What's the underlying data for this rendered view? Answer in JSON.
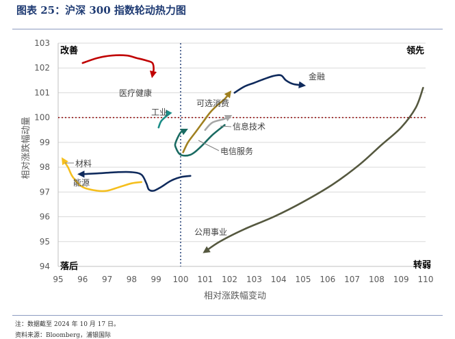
{
  "header": {
    "title": "图表 25：沪深 300 指数轮动热力图"
  },
  "notes": {
    "note": "注：数据截至 2024 年 10 月 17 日。",
    "source": "资料来源：Bloomberg，浦银国际"
  },
  "chart_data": {
    "type": "line",
    "xlabel": "相对涨跌幅变动",
    "ylabel": "相对涨跌幅动量",
    "xlim": [
      95,
      110
    ],
    "ylim": [
      94,
      103
    ],
    "xticks": [
      95,
      96,
      97,
      98,
      99,
      100,
      101,
      102,
      103,
      104,
      105,
      106,
      107,
      108,
      109,
      110
    ],
    "yticks": [
      94,
      95,
      96,
      97,
      98,
      99,
      100,
      101,
      102,
      103
    ],
    "xref": 100,
    "yref": 100,
    "quadrants": {
      "top_left": "改善",
      "top_right": "领先",
      "bottom_left": "落后",
      "bottom_right": "转弱"
    },
    "series": [
      {
        "name": "医疗健康",
        "color": "#c00000",
        "points": [
          [
            96.0,
            102.2
          ],
          [
            96.6,
            102.4
          ],
          [
            97.2,
            102.5
          ],
          [
            97.8,
            102.5
          ],
          [
            98.2,
            102.4
          ],
          [
            98.6,
            102.3
          ],
          [
            98.85,
            102.2
          ],
          [
            98.9,
            101.95
          ],
          [
            98.85,
            101.7
          ]
        ]
      },
      {
        "name": "工业",
        "color": "#1a8c86",
        "points": [
          [
            99.1,
            99.6
          ],
          [
            99.2,
            99.85
          ],
          [
            99.4,
            100.05
          ],
          [
            99.5,
            100.2
          ],
          [
            99.45,
            100.1
          ]
        ]
      },
      {
        "name": "金融",
        "color": "#0f2a5c",
        "points": [
          [
            102.2,
            101.0
          ],
          [
            102.6,
            101.25
          ],
          [
            103.0,
            101.4
          ],
          [
            103.4,
            101.55
          ],
          [
            103.8,
            101.68
          ],
          [
            104.1,
            101.7
          ],
          [
            104.3,
            101.5
          ],
          [
            104.6,
            101.35
          ],
          [
            105.0,
            101.3
          ]
        ]
      },
      {
        "name": "可选消费",
        "color": "#a08020",
        "points": [
          [
            100.1,
            98.6
          ],
          [
            100.3,
            99.0
          ],
          [
            100.6,
            99.4
          ],
          [
            100.9,
            99.8
          ],
          [
            101.2,
            100.2
          ],
          [
            101.5,
            100.5
          ],
          [
            101.8,
            100.75
          ],
          [
            102.0,
            101.0
          ]
        ]
      },
      {
        "name": "信息技术",
        "color": "#a6a6a6",
        "points": [
          [
            101.0,
            99.5
          ],
          [
            101.3,
            99.8
          ],
          [
            101.8,
            99.95
          ],
          [
            102.0,
            100.05
          ]
        ]
      },
      {
        "name": "电信服务",
        "color": "#1a6b62",
        "points": [
          [
            101.8,
            99.7
          ],
          [
            101.3,
            99.3
          ],
          [
            100.8,
            98.8
          ],
          [
            100.4,
            98.5
          ],
          [
            100.0,
            98.5
          ],
          [
            99.8,
            98.8
          ],
          [
            99.8,
            99.0
          ],
          [
            100.0,
            99.4
          ],
          [
            100.2,
            99.5
          ]
        ]
      },
      {
        "name": "材料",
        "color": "#f5bf1e",
        "points": [
          [
            98.4,
            97.4
          ],
          [
            98.0,
            97.35
          ],
          [
            97.5,
            97.2
          ],
          [
            97.0,
            97.05
          ],
          [
            96.6,
            97.05
          ],
          [
            96.0,
            97.2
          ],
          [
            95.6,
            97.6
          ],
          [
            95.4,
            98.0
          ],
          [
            95.2,
            98.3
          ]
        ]
      },
      {
        "name": "能源",
        "color": "#0f2a5c",
        "points": [
          [
            100.4,
            97.65
          ],
          [
            100.0,
            97.6
          ],
          [
            99.6,
            97.45
          ],
          [
            99.2,
            97.2
          ],
          [
            98.9,
            97.05
          ],
          [
            98.7,
            97.1
          ],
          [
            98.6,
            97.35
          ],
          [
            98.4,
            97.7
          ],
          [
            98.0,
            97.8
          ],
          [
            97.4,
            97.8
          ],
          [
            96.6,
            97.75
          ],
          [
            96.0,
            97.72
          ],
          [
            95.9,
            97.72
          ]
        ]
      },
      {
        "name": "公用事业",
        "color": "#55583f",
        "points": [
          [
            109.9,
            101.2
          ],
          [
            109.6,
            100.4
          ],
          [
            109.0,
            99.6
          ],
          [
            108.2,
            98.9
          ],
          [
            107.3,
            98.1
          ],
          [
            106.2,
            97.3
          ],
          [
            105.0,
            96.6
          ],
          [
            103.8,
            96.0
          ],
          [
            102.6,
            95.5
          ],
          [
            101.6,
            95.0
          ],
          [
            101.0,
            94.6
          ]
        ]
      }
    ],
    "annotations": [
      {
        "text": "医疗健康",
        "series": "医疗健康"
      },
      {
        "text": "工业",
        "series": "工业"
      },
      {
        "text": "金融",
        "series": "金融"
      },
      {
        "text": "可选消费",
        "series": "可选消费"
      },
      {
        "text": "信息技术",
        "series": "信息技术"
      },
      {
        "text": "电信服务",
        "series": "电信服务"
      },
      {
        "text": "材料",
        "series": "材料"
      },
      {
        "text": "能源",
        "series": "能源"
      },
      {
        "text": "公用事业",
        "series": "公用事业"
      }
    ]
  }
}
